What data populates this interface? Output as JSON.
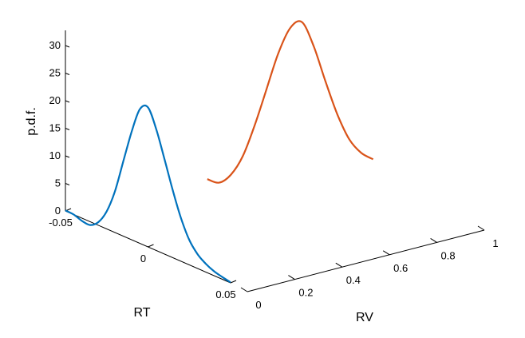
{
  "chart_data": {
    "type": "line",
    "projection": "3d",
    "title": "",
    "xlabel": "RT",
    "ylabel": "RV",
    "zlabel": "p.d.f.",
    "xlim": [
      -0.05,
      0.05
    ],
    "ylim": [
      0,
      1
    ],
    "zlim": [
      0,
      32
    ],
    "x_ticks": [
      -0.05,
      0,
      0.05
    ],
    "x_tick_labels": [
      "-0.05",
      "0",
      "0.05"
    ],
    "y_ticks": [
      0,
      0.2,
      0.4,
      0.6,
      0.8,
      1
    ],
    "y_tick_labels": [
      "0",
      "0.2",
      "0.4",
      "0.6",
      "0.8",
      "1"
    ],
    "z_ticks": [
      0,
      5,
      10,
      15,
      20,
      25,
      30
    ],
    "z_tick_labels": [
      "0",
      "5",
      "10",
      "15",
      "20",
      "25",
      "30"
    ],
    "grid": false,
    "series": [
      {
        "color": "#0072BD",
        "plane": "RV=0",
        "x": [
          -0.05,
          -0.045,
          -0.04,
          -0.035,
          -0.03,
          -0.025,
          -0.02,
          -0.015,
          -0.01,
          -0.005,
          0,
          0.005,
          0.01,
          0.015,
          0.02,
          0.025,
          0.03,
          0.035,
          0.04,
          0.045,
          0.05
        ],
        "z": [
          0.1,
          0.0,
          -0.5,
          -0.6,
          0.6,
          3.2,
          7.5,
          13.5,
          19.5,
          24.3,
          25.3,
          22.0,
          17.2,
          12.2,
          7.8,
          4.5,
          2.6,
          1.5,
          0.8,
          0.4,
          0.1
        ]
      },
      {
        "color": "#D95319",
        "plane": "RT=0",
        "y": [
          0.25,
          0.3,
          0.35,
          0.4,
          0.45,
          0.5,
          0.55,
          0.6,
          0.65,
          0.7,
          0.75,
          0.8,
          0.85,
          0.9,
          0.95
        ],
        "z": [
          9.5,
          8.3,
          9.2,
          12.0,
          17.0,
          23.0,
          29.0,
          33.0,
          33.5,
          28.5,
          21.5,
          15.0,
          10.0,
          7.0,
          5.3
        ]
      }
    ]
  }
}
